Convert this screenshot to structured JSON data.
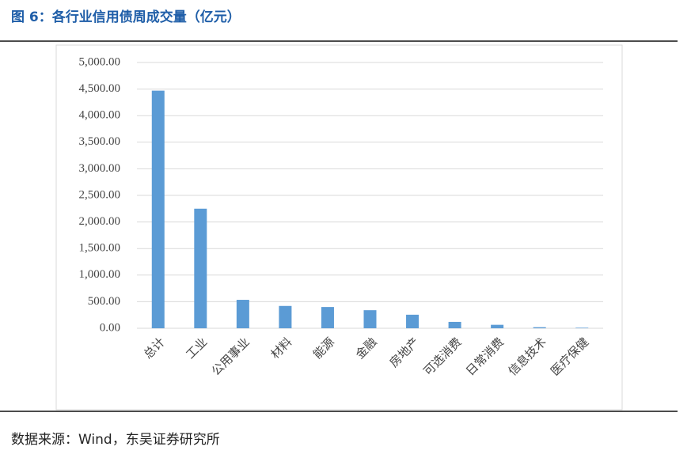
{
  "chart_data": {
    "type": "bar",
    "title": "图 6：各行业信用债周成交量（亿元）",
    "source": "数据来源：Wind，东吴证券研究所",
    "categories": [
      "总计",
      "工业",
      "公用事业",
      "材料",
      "能源",
      "金融",
      "房地产",
      "可选消费",
      "日常消费",
      "信息技术",
      "医疗保健"
    ],
    "values": [
      4470,
      2250,
      535,
      420,
      400,
      340,
      255,
      120,
      65,
      20,
      10
    ],
    "color": "#5b9bd5",
    "ylim": [
      0,
      5000
    ],
    "yticks": [
      {
        "value": 0,
        "label": "0.00"
      },
      {
        "value": 500,
        "label": "500.00"
      },
      {
        "value": 1000,
        "label": "1,000.00"
      },
      {
        "value": 1500,
        "label": "1,500.00"
      },
      {
        "value": 2000,
        "label": "2,000.00"
      },
      {
        "value": 2500,
        "label": "2,500.00"
      },
      {
        "value": 3000,
        "label": "3,000.00"
      },
      {
        "value": 3500,
        "label": "3,500.00"
      },
      {
        "value": 4000,
        "label": "4,000.00"
      },
      {
        "value": 4500,
        "label": "4,500.00"
      },
      {
        "value": 5000,
        "label": "5,000.00"
      }
    ],
    "grid": true
  }
}
